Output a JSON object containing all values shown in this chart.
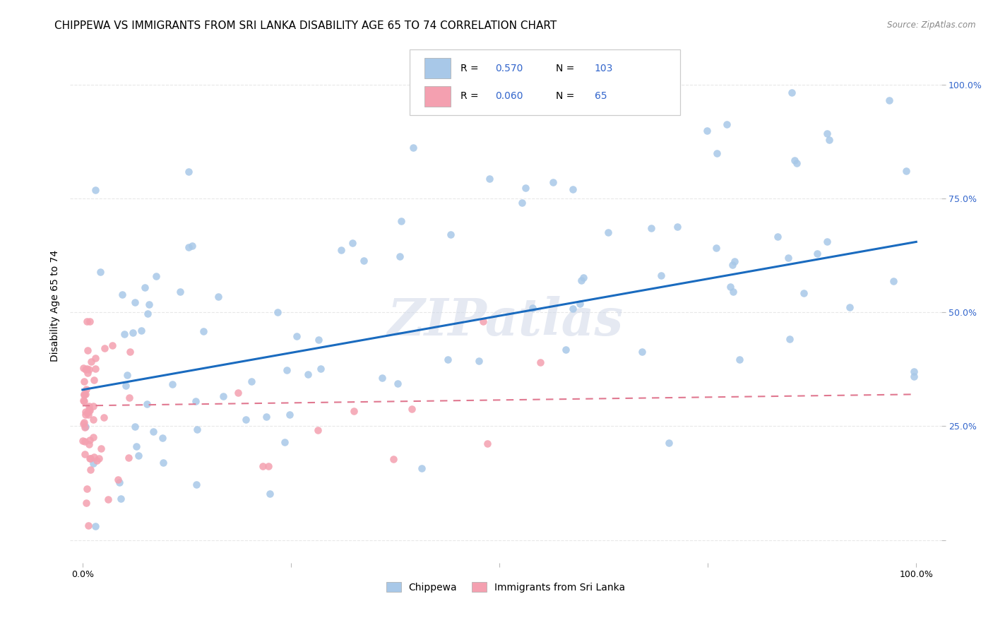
{
  "title": "CHIPPEWA VS IMMIGRANTS FROM SRI LANKA DISABILITY AGE 65 TO 74 CORRELATION CHART",
  "source": "Source: ZipAtlas.com",
  "ylabel": "Disability Age 65 to 74",
  "xlim": [
    -0.015,
    1.03
  ],
  "ylim": [
    -0.05,
    1.08
  ],
  "xticks": [
    0.0,
    0.25,
    0.5,
    0.75,
    1.0
  ],
  "yticks": [
    0.0,
    0.25,
    0.5,
    0.75,
    1.0
  ],
  "xticklabels": [
    "0.0%",
    "",
    "",
    "",
    "100.0%"
  ],
  "yticklabels": [
    "",
    "25.0%",
    "50.0%",
    "75.0%",
    "100.0%"
  ],
  "chippewa_color": "#a8c8e8",
  "srilanka_color": "#f4a0b0",
  "chippewa_line_color": "#1a6bbf",
  "srilanka_line_color": "#e07890",
  "R_chippewa": 0.57,
  "N_chippewa": 103,
  "R_srilanka": 0.06,
  "N_srilanka": 65,
  "stat_color": "#3366cc",
  "legend_labels": [
    "Chippewa",
    "Immigrants from Sri Lanka"
  ],
  "background_color": "#ffffff",
  "grid_color": "#e8e8e8",
  "title_fontsize": 11,
  "tick_fontsize": 9,
  "ylabel_fontsize": 10,
  "watermark_text": "ZIPatlas",
  "chip_line_start_y": 0.33,
  "chip_line_end_y": 0.655,
  "sri_line_start_y": 0.295,
  "sri_line_end_y": 0.32
}
